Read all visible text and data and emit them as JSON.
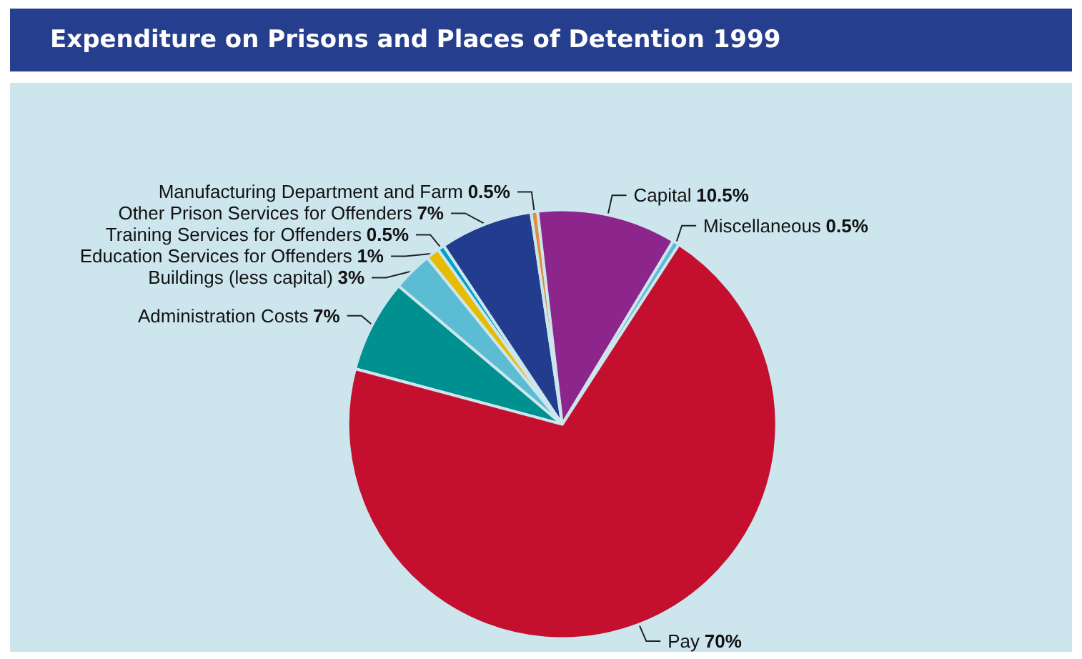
{
  "chart_data": {
    "type": "pie",
    "title": "Expenditure on Prisons and Places of Detention 1999",
    "categories": [
      "Administration Costs",
      "Buildings (less capital)",
      "Education Services for Offenders",
      "Training Services for Offenders",
      "Other Prison Services for Offenders",
      "Manufacturing Department and Farm",
      "Capital",
      "Miscellaneous",
      "Pay"
    ],
    "values": [
      7,
      3,
      1,
      0.5,
      7,
      0.5,
      10.5,
      0.5,
      70
    ],
    "value_labels": [
      "7%",
      "3%",
      "1%",
      "0.5%",
      "7%",
      "0.5%",
      "10.5%",
      "0.5%",
      "70%"
    ],
    "colors": [
      "#009090",
      "#5bbcd4",
      "#e6bc00",
      "#00a0c8",
      "#233d8e",
      "#e08e3c",
      "#8c268c",
      "#5bbcd4",
      "#c4102e"
    ],
    "legend": false
  }
}
